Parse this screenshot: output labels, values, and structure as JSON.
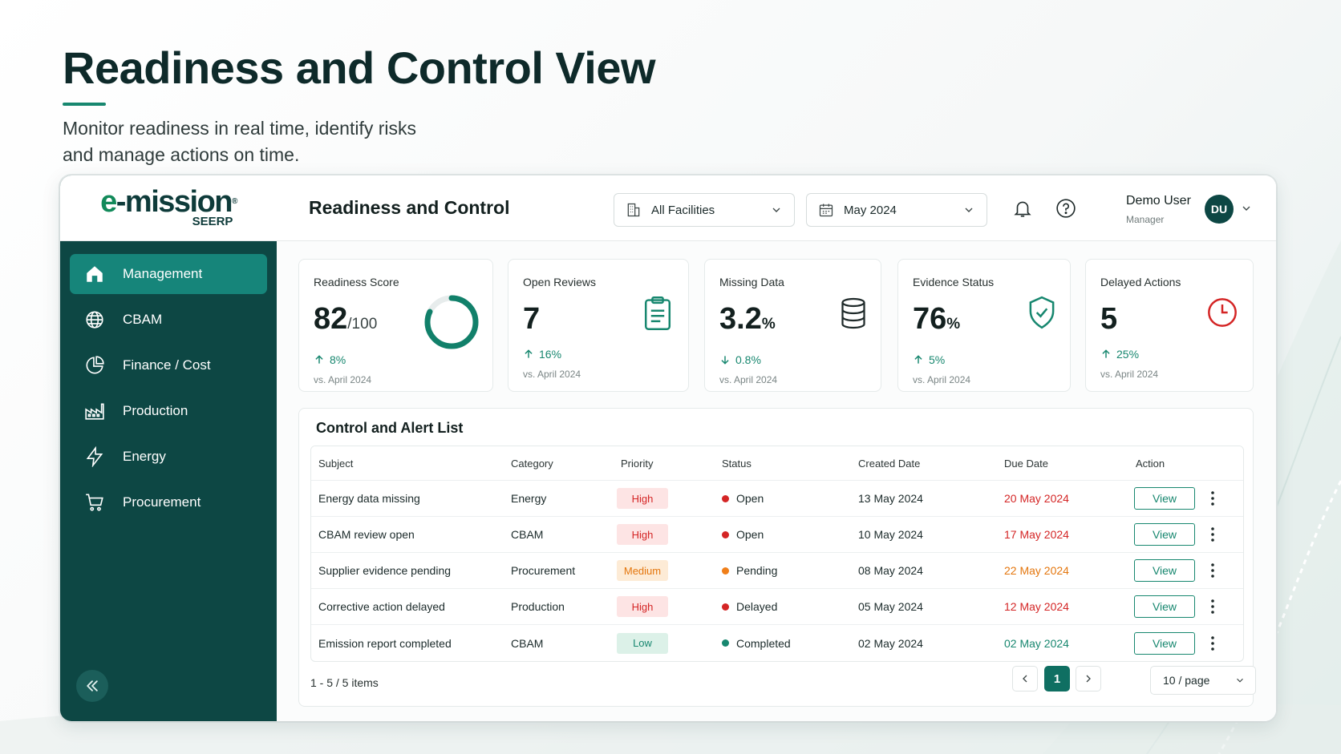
{
  "hero": {
    "title": "Readiness and Control View",
    "subtitle_line1": "Monitor readiness in real time, identify risks",
    "subtitle_line2": "and manage actions on time."
  },
  "brand": {
    "logo_e": "e",
    "logo_rest": "-mission",
    "logo_sub": "SEERP",
    "logo_reg": "®"
  },
  "sidebar": {
    "items": [
      {
        "label": "Management",
        "icon": "home-icon",
        "active": true
      },
      {
        "label": "CBAM",
        "icon": "globe-icon"
      },
      {
        "label": "Finance / Cost",
        "icon": "pie-chart-icon"
      },
      {
        "label": "Production",
        "icon": "factory-icon"
      },
      {
        "label": "Energy",
        "icon": "lightning-icon"
      },
      {
        "label": "Procurement",
        "icon": "cart-icon"
      }
    ],
    "collapse_icon": "double-chevron-left-icon"
  },
  "topbar": {
    "title": "Readiness and Control",
    "facility_select": "All Facilities",
    "period_select": "May 2024",
    "user_name": "Demo User",
    "user_role": "Manager",
    "avatar_initials": "DU"
  },
  "kpis": [
    {
      "label": "Readiness Score",
      "value": "82",
      "unit": "/100",
      "trend": "8%",
      "trend_dir": "up",
      "compare": "vs. April 2024",
      "icon": "donut-progress-icon",
      "progress": 0.82
    },
    {
      "label": "Open Reviews",
      "value": "7",
      "unit": "",
      "trend": "16%",
      "trend_dir": "up",
      "compare": "vs. April 2024",
      "icon": "clipboard-icon"
    },
    {
      "label": "Missing Data",
      "value": "3.2",
      "unit": "%",
      "trend": "0.8%",
      "trend_dir": "down",
      "compare": "vs. April 2024",
      "icon": "database-icon"
    },
    {
      "label": "Evidence Status",
      "value": "76",
      "unit": "%",
      "trend": "5%",
      "trend_dir": "up",
      "compare": "vs. April 2024",
      "icon": "shield-check-icon"
    },
    {
      "label": "Delayed Actions",
      "value": "5",
      "unit": "",
      "trend": "25%",
      "trend_dir": "up",
      "compare": "vs. April 2024",
      "icon": "clock-icon"
    }
  ],
  "alerts": {
    "title": "Control and Alert List",
    "columns": [
      "Subject",
      "Category",
      "Priority",
      "Status",
      "Created Date",
      "Due Date",
      "Action"
    ],
    "rows": [
      {
        "subject": "Energy data missing",
        "category": "Energy",
        "priority": "High",
        "status": "Open",
        "created": "13 May 2024",
        "due": "20 May 2024",
        "action": "View"
      },
      {
        "subject": "CBAM review open",
        "category": "CBAM",
        "priority": "High",
        "status": "Open",
        "created": "10 May 2024",
        "due": "17 May 2024",
        "action": "View"
      },
      {
        "subject": "Supplier evidence pending",
        "category": "Procurement",
        "priority": "Medium",
        "status": "Pending",
        "created": "08 May 2024",
        "due": "22 May 2024",
        "action": "View"
      },
      {
        "subject": "Corrective action delayed",
        "category": "Production",
        "priority": "High",
        "status": "Delayed",
        "created": "05 May 2024",
        "due": "12 May 2024",
        "action": "View"
      },
      {
        "subject": "Emission report completed",
        "category": "CBAM",
        "priority": "Low",
        "status": "Completed",
        "created": "02 May 2024",
        "due": "02 May 2024",
        "action": "View"
      }
    ],
    "pager_info": "1 - 5 / 5 items",
    "current_page": "1",
    "per_page": "10 / page"
  },
  "colors": {
    "brand_dark": "#0d4744",
    "accent": "#17876f",
    "danger": "#d42525",
    "warning": "#e4760d"
  }
}
